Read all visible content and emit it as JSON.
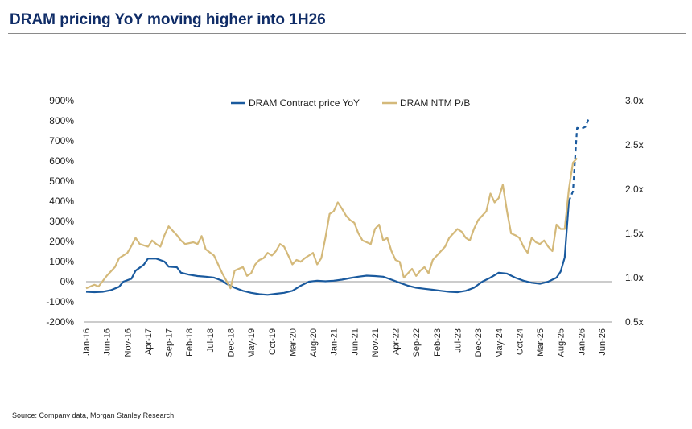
{
  "title": "DRAM pricing YoY moving higher into 1H26",
  "source": "Source: Company data, Morgan Stanley Research",
  "chart_data": {
    "type": "line",
    "legend_position": "top-center",
    "grid": false,
    "x_tick_labels": [
      "Jan-16",
      "Jun-16",
      "Nov-16",
      "Apr-17",
      "Sep-17",
      "Feb-18",
      "Jul-18",
      "Dec-18",
      "May-19",
      "Oct-19",
      "Mar-20",
      "Aug-20",
      "Jan-21",
      "Jun-21",
      "Nov-21",
      "Apr-22",
      "Sep-22",
      "Feb-23",
      "Jul-23",
      "Dec-23",
      "May-24",
      "Oct-24",
      "Mar-25",
      "Aug-25",
      "Jan-26",
      "Jun-26"
    ],
    "y_left": {
      "ylim": [
        -200,
        900
      ],
      "tick_values": [
        -200,
        -100,
        0,
        100,
        200,
        300,
        400,
        500,
        600,
        700,
        800,
        900
      ],
      "tick_labels": [
        "-200%",
        "-100%",
        "0%",
        "100%",
        "200%",
        "300%",
        "400%",
        "500%",
        "600%",
        "700%",
        "800%",
        "900%"
      ]
    },
    "y_right": {
      "ylim": [
        0.5,
        3.0
      ],
      "tick_values": [
        0.5,
        1.0,
        1.5,
        2.0,
        2.5,
        3.0
      ],
      "tick_labels": [
        "0.5x",
        "1.0x",
        "1.5x",
        "2.0x",
        "2.5x",
        "3.0x"
      ]
    },
    "series": [
      {
        "name": "DRAM Contract price YoY",
        "axis": "left",
        "color": "#1a5a9e",
        "style": "solid",
        "points": [
          [
            "2016-01",
            -50
          ],
          [
            "2016-03",
            -52
          ],
          [
            "2016-05",
            -50
          ],
          [
            "2016-07",
            -42
          ],
          [
            "2016-09",
            -25
          ],
          [
            "2016-10",
            0
          ],
          [
            "2016-12",
            15
          ],
          [
            "2017-01",
            55
          ],
          [
            "2017-03",
            85
          ],
          [
            "2017-04",
            115
          ],
          [
            "2017-06",
            115
          ],
          [
            "2017-08",
            100
          ],
          [
            "2017-09",
            75
          ],
          [
            "2017-11",
            72
          ],
          [
            "2017-12",
            45
          ],
          [
            "2018-02",
            35
          ],
          [
            "2018-04",
            28
          ],
          [
            "2018-06",
            25
          ],
          [
            "2018-08",
            20
          ],
          [
            "2018-10",
            5
          ],
          [
            "2018-11",
            -10
          ],
          [
            "2019-01",
            -30
          ],
          [
            "2019-03",
            -45
          ],
          [
            "2019-05",
            -55
          ],
          [
            "2019-07",
            -62
          ],
          [
            "2019-09",
            -65
          ],
          [
            "2019-11",
            -60
          ],
          [
            "2020-01",
            -55
          ],
          [
            "2020-03",
            -45
          ],
          [
            "2020-05",
            -20
          ],
          [
            "2020-07",
            0
          ],
          [
            "2020-09",
            5
          ],
          [
            "2020-11",
            2
          ],
          [
            "2021-01",
            5
          ],
          [
            "2021-03",
            10
          ],
          [
            "2021-05",
            18
          ],
          [
            "2021-07",
            25
          ],
          [
            "2021-09",
            30
          ],
          [
            "2021-11",
            28
          ],
          [
            "2022-01",
            25
          ],
          [
            "2022-03",
            10
          ],
          [
            "2022-05",
            -5
          ],
          [
            "2022-07",
            -20
          ],
          [
            "2022-09",
            -30
          ],
          [
            "2022-11",
            -35
          ],
          [
            "2023-01",
            -40
          ],
          [
            "2023-03",
            -45
          ],
          [
            "2023-05",
            -50
          ],
          [
            "2023-07",
            -52
          ],
          [
            "2023-09",
            -45
          ],
          [
            "2023-11",
            -30
          ],
          [
            "2024-01",
            0
          ],
          [
            "2024-03",
            20
          ],
          [
            "2024-05",
            45
          ],
          [
            "2024-07",
            40
          ],
          [
            "2024-09",
            20
          ],
          [
            "2024-11",
            5
          ],
          [
            "2025-01",
            -5
          ],
          [
            "2025-03",
            -10
          ],
          [
            "2025-05",
            0
          ],
          [
            "2025-07",
            20
          ],
          [
            "2025-08",
            50
          ],
          [
            "2025-09",
            120
          ],
          [
            "2025-10",
            400
          ]
        ]
      },
      {
        "name": "DRAM Contract price YoY (forecast)",
        "axis": "left",
        "color": "#1a5a9e",
        "style": "dashed",
        "points": [
          [
            "2025-10",
            400
          ],
          [
            "2025-11",
            450
          ],
          [
            "2025-12",
            765
          ],
          [
            "2026-01",
            760
          ],
          [
            "2026-02",
            770
          ],
          [
            "2026-03",
            820
          ]
        ]
      },
      {
        "name": "DRAM NTM P/B",
        "axis": "right",
        "color": "#d4b97a",
        "style": "solid",
        "points": [
          [
            "2016-01",
            0.88
          ],
          [
            "2016-03",
            0.92
          ],
          [
            "2016-04",
            0.9
          ],
          [
            "2016-06",
            1.02
          ],
          [
            "2016-08",
            1.12
          ],
          [
            "2016-09",
            1.22
          ],
          [
            "2016-11",
            1.28
          ],
          [
            "2016-12",
            1.36
          ],
          [
            "2017-01",
            1.45
          ],
          [
            "2017-02",
            1.38
          ],
          [
            "2017-04",
            1.35
          ],
          [
            "2017-05",
            1.42
          ],
          [
            "2017-06",
            1.38
          ],
          [
            "2017-07",
            1.35
          ],
          [
            "2017-08",
            1.48
          ],
          [
            "2017-09",
            1.58
          ],
          [
            "2017-11",
            1.48
          ],
          [
            "2017-12",
            1.42
          ],
          [
            "2018-01",
            1.38
          ],
          [
            "2018-03",
            1.4
          ],
          [
            "2018-04",
            1.38
          ],
          [
            "2018-05",
            1.47
          ],
          [
            "2018-06",
            1.32
          ],
          [
            "2018-08",
            1.25
          ],
          [
            "2018-09",
            1.15
          ],
          [
            "2018-10",
            1.05
          ],
          [
            "2018-12",
            0.88
          ],
          [
            "2019-01",
            1.08
          ],
          [
            "2019-02",
            1.1
          ],
          [
            "2019-03",
            1.12
          ],
          [
            "2019-04",
            1.02
          ],
          [
            "2019-05",
            1.05
          ],
          [
            "2019-06",
            1.15
          ],
          [
            "2019-07",
            1.2
          ],
          [
            "2019-08",
            1.22
          ],
          [
            "2019-09",
            1.28
          ],
          [
            "2019-10",
            1.25
          ],
          [
            "2019-11",
            1.3
          ],
          [
            "2019-12",
            1.38
          ],
          [
            "2020-01",
            1.35
          ],
          [
            "2020-02",
            1.25
          ],
          [
            "2020-03",
            1.15
          ],
          [
            "2020-04",
            1.2
          ],
          [
            "2020-05",
            1.18
          ],
          [
            "2020-06",
            1.22
          ],
          [
            "2020-07",
            1.25
          ],
          [
            "2020-08",
            1.28
          ],
          [
            "2020-09",
            1.15
          ],
          [
            "2020-10",
            1.22
          ],
          [
            "2020-11",
            1.45
          ],
          [
            "2020-12",
            1.72
          ],
          [
            "2021-01",
            1.75
          ],
          [
            "2021-02",
            1.85
          ],
          [
            "2021-03",
            1.78
          ],
          [
            "2021-04",
            1.7
          ],
          [
            "2021-05",
            1.65
          ],
          [
            "2021-06",
            1.62
          ],
          [
            "2021-07",
            1.5
          ],
          [
            "2021-08",
            1.42
          ],
          [
            "2021-09",
            1.4
          ],
          [
            "2021-10",
            1.38
          ],
          [
            "2021-11",
            1.55
          ],
          [
            "2021-12",
            1.6
          ],
          [
            "2022-01",
            1.42
          ],
          [
            "2022-02",
            1.45
          ],
          [
            "2022-03",
            1.3
          ],
          [
            "2022-04",
            1.2
          ],
          [
            "2022-05",
            1.18
          ],
          [
            "2022-06",
            1.0
          ],
          [
            "2022-07",
            1.05
          ],
          [
            "2022-08",
            1.1
          ],
          [
            "2022-09",
            1.02
          ],
          [
            "2022-10",
            1.08
          ],
          [
            "2022-11",
            1.12
          ],
          [
            "2022-12",
            1.05
          ],
          [
            "2023-01",
            1.2
          ],
          [
            "2023-02",
            1.25
          ],
          [
            "2023-03",
            1.3
          ],
          [
            "2023-04",
            1.35
          ],
          [
            "2023-05",
            1.45
          ],
          [
            "2023-06",
            1.5
          ],
          [
            "2023-07",
            1.55
          ],
          [
            "2023-08",
            1.52
          ],
          [
            "2023-09",
            1.45
          ],
          [
            "2023-10",
            1.42
          ],
          [
            "2023-11",
            1.55
          ],
          [
            "2023-12",
            1.65
          ],
          [
            "2024-01",
            1.7
          ],
          [
            "2024-02",
            1.75
          ],
          [
            "2024-03",
            1.95
          ],
          [
            "2024-04",
            1.85
          ],
          [
            "2024-05",
            1.9
          ],
          [
            "2024-06",
            2.05
          ],
          [
            "2024-07",
            1.75
          ],
          [
            "2024-08",
            1.5
          ],
          [
            "2024-09",
            1.48
          ],
          [
            "2024-10",
            1.45
          ],
          [
            "2024-11",
            1.35
          ],
          [
            "2024-12",
            1.28
          ],
          [
            "2025-01",
            1.45
          ],
          [
            "2025-02",
            1.4
          ],
          [
            "2025-03",
            1.38
          ],
          [
            "2025-04",
            1.42
          ],
          [
            "2025-05",
            1.35
          ],
          [
            "2025-06",
            1.3
          ],
          [
            "2025-07",
            1.6
          ],
          [
            "2025-08",
            1.55
          ],
          [
            "2025-09",
            1.55
          ],
          [
            "2025-10",
            2.0
          ],
          [
            "2025-11",
            2.3
          ],
          [
            "2025-12",
            2.35
          ]
        ]
      }
    ]
  }
}
